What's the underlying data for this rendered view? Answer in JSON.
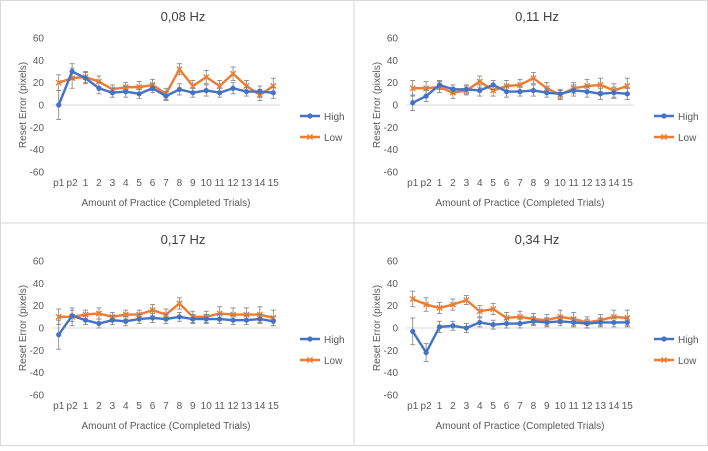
{
  "figure": {
    "colors": {
      "high": "#4472C4",
      "low": "#ED7D31",
      "axis": "#D9D9D9",
      "text": "#595959",
      "title": "#404040",
      "errbar": "#7F7F7F",
      "border": "#D9D9D9"
    }
  },
  "chart_data": [
    {
      "type": "line",
      "title": "0,08 Hz",
      "xlabel": "Amount of Practice (Completed Trials)",
      "ylabel": "Reset Error (pixels)",
      "ylim": [
        -60,
        60
      ],
      "yticks": [
        60,
        40,
        20,
        0,
        -20,
        -40,
        -60
      ],
      "categories": [
        "p1",
        "p2",
        "1",
        "2",
        "3",
        "4",
        "5",
        "6",
        "7",
        "8",
        "9",
        "10",
        "11",
        "12",
        "13",
        "14",
        "15"
      ],
      "legend": "right",
      "series": [
        {
          "name": "High",
          "values": [
            0,
            30,
            24,
            15,
            11,
            12,
            10,
            15,
            8,
            14,
            11,
            13,
            11,
            15,
            12,
            12,
            11
          ],
          "errors": [
            13,
            7,
            5,
            5,
            4,
            5,
            4,
            4,
            4,
            5,
            4,
            5,
            4,
            5,
            4,
            5,
            5
          ]
        },
        {
          "name": "Low",
          "values": [
            20,
            24,
            25,
            21,
            14,
            16,
            16,
            18,
            10,
            32,
            17,
            25,
            17,
            28,
            17,
            9,
            17
          ],
          "errors": [
            7,
            9,
            5,
            5,
            4,
            4,
            5,
            5,
            5,
            5,
            5,
            6,
            5,
            6,
            5,
            5,
            7
          ]
        }
      ]
    },
    {
      "type": "line",
      "title": "0,11 Hz",
      "xlabel": "Amount of Practice (Completed Trials)",
      "ylabel": "Reset Error (pixels)",
      "ylim": [
        -60,
        60
      ],
      "yticks": [
        60,
        40,
        20,
        0,
        -20,
        -40,
        -60
      ],
      "categories": [
        "p1",
        "p2",
        "1",
        "2",
        "3",
        "4",
        "5",
        "6",
        "7",
        "8",
        "9",
        "10",
        "11",
        "12",
        "13",
        "14",
        "15"
      ],
      "legend": "right",
      "series": [
        {
          "name": "High",
          "values": [
            2,
            8,
            18,
            14,
            14,
            13,
            18,
            12,
            12,
            13,
            11,
            10,
            13,
            12,
            10,
            11,
            10
          ],
          "errors": [
            7,
            5,
            4,
            4,
            4,
            5,
            4,
            5,
            4,
            5,
            4,
            4,
            5,
            5,
            5,
            5,
            5
          ]
        },
        {
          "name": "Low",
          "values": [
            15,
            15,
            16,
            11,
            13,
            21,
            13,
            17,
            18,
            24,
            15,
            9,
            15,
            17,
            18,
            13,
            17
          ],
          "errors": [
            7,
            6,
            5,
            5,
            4,
            5,
            5,
            5,
            5,
            5,
            5,
            4,
            5,
            6,
            6,
            6,
            7
          ]
        }
      ]
    },
    {
      "type": "line",
      "title": "0,17 Hz",
      "xlabel": "Amount of Practice (Completed Trials)",
      "ylabel": "Reset Error (pixels)",
      "ylim": [
        -60,
        60
      ],
      "yticks": [
        60,
        40,
        20,
        0,
        -20,
        -40,
        -60
      ],
      "categories": [
        "p1",
        "p2",
        "1",
        "2",
        "3",
        "4",
        "5",
        "6",
        "7",
        "8",
        "9",
        "10",
        "11",
        "12",
        "13",
        "14",
        "15"
      ],
      "legend": "right",
      "series": [
        {
          "name": "High",
          "values": [
            -6,
            11,
            7,
            4,
            7,
            6,
            8,
            9,
            8,
            10,
            8,
            8,
            8,
            7,
            7,
            8,
            6
          ],
          "errors": [
            13,
            5,
            4,
            4,
            4,
            4,
            4,
            4,
            4,
            4,
            4,
            4,
            4,
            4,
            4,
            4,
            4
          ]
        },
        {
          "name": "Low",
          "values": [
            10,
            10,
            12,
            13,
            10,
            12,
            12,
            16,
            12,
            22,
            10,
            10,
            13,
            12,
            12,
            12,
            9
          ],
          "errors": [
            7,
            8,
            4,
            5,
            4,
            4,
            4,
            5,
            5,
            5,
            5,
            5,
            6,
            6,
            6,
            7,
            7
          ]
        }
      ]
    },
    {
      "type": "line",
      "title": "0,34 Hz",
      "xlabel": "Amount of Practice (Completed Trials)",
      "ylabel": "Reset Error (pixels)",
      "ylim": [
        -60,
        60
      ],
      "yticks": [
        60,
        40,
        20,
        0,
        -20,
        -40,
        -60
      ],
      "categories": [
        "p1",
        "p2",
        "1",
        "2",
        "3",
        "4",
        "5",
        "6",
        "7",
        "8",
        "9",
        "10",
        "11",
        "12",
        "13",
        "14",
        "15"
      ],
      "legend": "right",
      "series": [
        {
          "name": "High",
          "values": [
            -3,
            -22,
            1,
            2,
            0,
            5,
            3,
            4,
            4,
            6,
            5,
            6,
            5,
            4,
            5,
            5,
            5
          ],
          "errors": [
            12,
            8,
            5,
            4,
            4,
            4,
            4,
            4,
            4,
            4,
            4,
            4,
            4,
            4,
            4,
            4,
            4
          ]
        },
        {
          "name": "Low",
          "values": [
            26,
            21,
            18,
            21,
            25,
            15,
            17,
            9,
            10,
            8,
            7,
            10,
            8,
            5,
            7,
            10,
            9
          ],
          "errors": [
            7,
            6,
            5,
            5,
            4,
            5,
            5,
            5,
            5,
            5,
            5,
            6,
            6,
            5,
            5,
            6,
            7
          ]
        }
      ]
    }
  ]
}
